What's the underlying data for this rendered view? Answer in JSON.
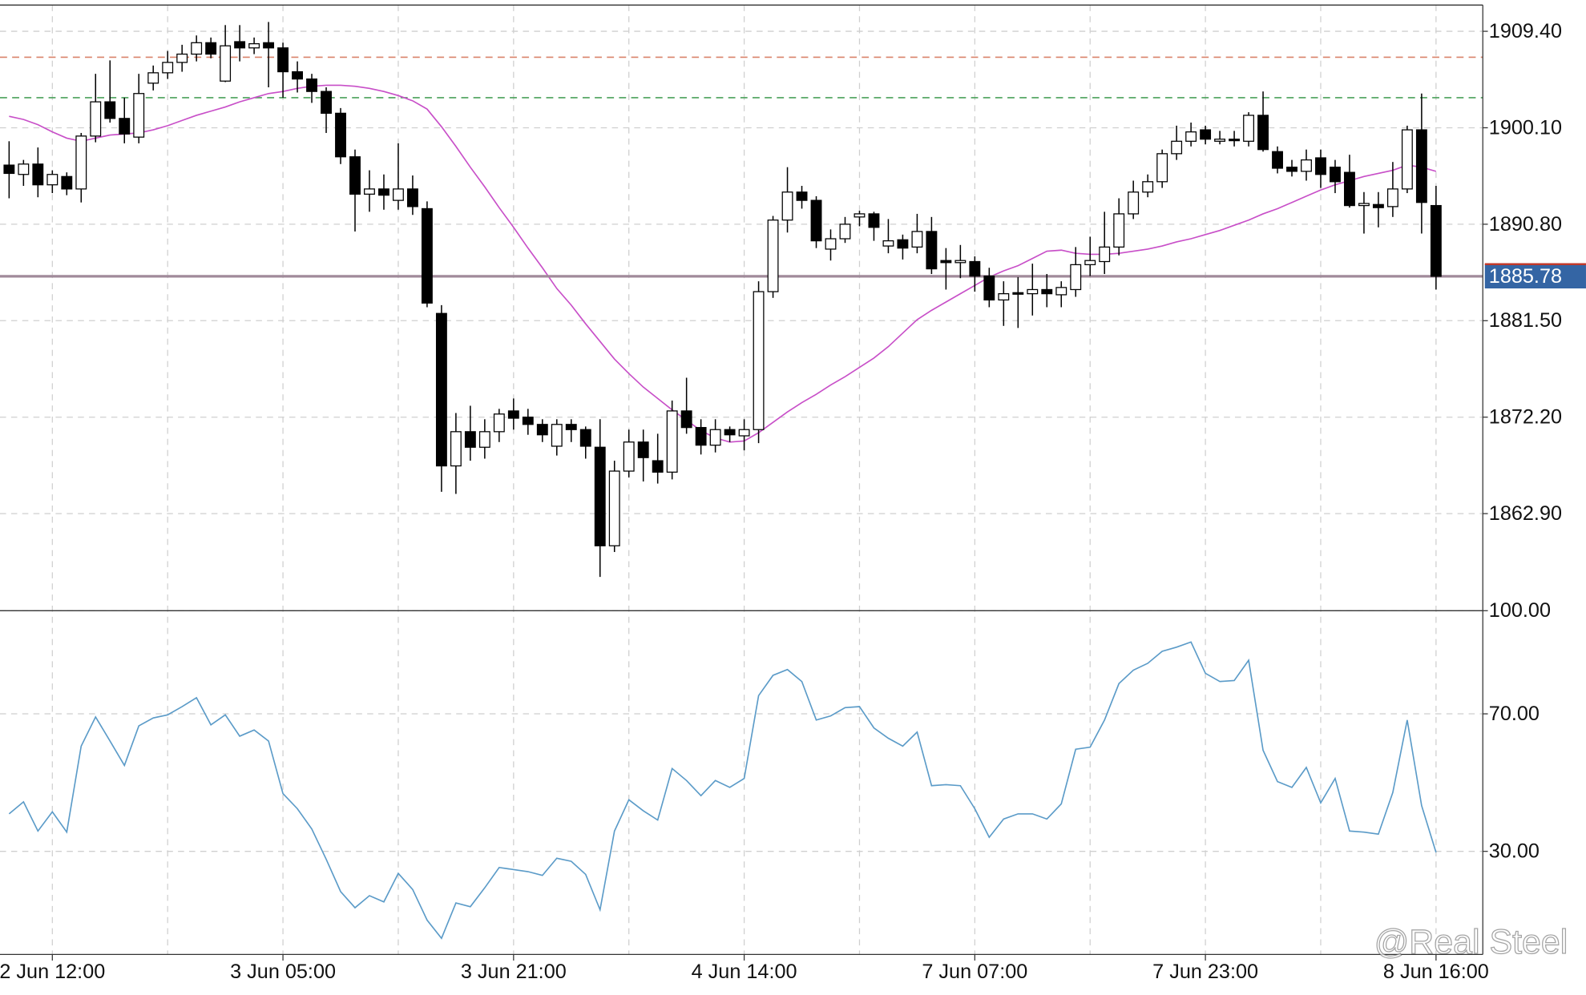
{
  "watermark": "@Real Steel",
  "chart_data": [
    {
      "type": "candlestick",
      "categories": [
        null,
        null,
        null,
        "2 Jun 12:00",
        null,
        null,
        null,
        null,
        null,
        null,
        null,
        null,
        null,
        null,
        null,
        null,
        null,
        null,
        null,
        "3 Jun 05:00",
        null,
        null,
        null,
        null,
        null,
        null,
        null,
        null,
        null,
        null,
        null,
        null,
        null,
        null,
        null,
        "3 Jun 21:00",
        null,
        null,
        null,
        null,
        null,
        null,
        null,
        null,
        null,
        null,
        null,
        null,
        null,
        null,
        null,
        "4 Jun 14:00",
        null,
        null,
        null,
        null,
        null,
        null,
        null,
        null,
        null,
        null,
        null,
        null,
        null,
        null,
        null,
        "7 Jun 07:00",
        null,
        null,
        null,
        null,
        null,
        null,
        null,
        null,
        null,
        null,
        null,
        null,
        null,
        null,
        null,
        "7 Jun 23:00",
        null,
        null,
        null,
        null,
        null,
        null,
        null,
        null,
        null,
        null,
        null,
        null,
        null,
        null,
        null,
        "8 Jun 16:00"
      ],
      "open": [
        1896.5,
        1895.6,
        1896.6,
        1894.6,
        1895.4,
        1894.2,
        1899.3,
        1902.6,
        1901.0,
        1899.2,
        1904.4,
        1905.4,
        1906.4,
        1907.2,
        1908.3,
        1904.6,
        1908.4,
        1907.8,
        1908.3,
        1907.8,
        1905.5,
        1904.8,
        1903.6,
        1901.5,
        1897.3,
        1893.7,
        1894.2,
        1893.1,
        1894.2,
        1892.3,
        1882.2,
        1867.5,
        1870.8,
        1869.3,
        1870.8,
        1872.8,
        1872.2,
        1871.5,
        1869.4,
        1871.5,
        1871.0,
        1869.3,
        1859.8,
        1867.0,
        1869.8,
        1868.0,
        1866.9,
        1872.8,
        1871.2,
        1869.5,
        1871.0,
        1870.4,
        1871.0,
        1884.3,
        1891.2,
        1893.9,
        1893.1,
        1888.4,
        1889.4,
        1891.5,
        1891.8,
        1888.7,
        1889.3,
        1888.6,
        1890.1,
        1887.3,
        1887.1,
        1887.2,
        1885.8,
        1883.5,
        1884.2,
        1884.1,
        1884.5,
        1884.0,
        1884.5,
        1886.9,
        1887.2,
        1888.6,
        1891.8,
        1893.9,
        1894.9,
        1897.6,
        1898.8,
        1899.9,
        1898.8,
        1899.0,
        1898.8,
        1901.3,
        1897.8,
        1896.3,
        1895.9,
        1897.2,
        1896.3,
        1895.8,
        1892.6,
        1892.7,
        1892.5,
        1894.2,
        1899.9,
        1892.6
      ],
      "high": [
        1898.8,
        1897.0,
        1898.2,
        1896.0,
        1895.8,
        1899.6,
        1905.3,
        1906.6,
        1903.0,
        1905.3,
        1906.1,
        1907.5,
        1908.1,
        1909.0,
        1908.8,
        1910.0,
        1910.0,
        1908.8,
        1910.3,
        1908.3,
        1906.5,
        1905.3,
        1904.0,
        1902.0,
        1898.0,
        1896.0,
        1895.6,
        1898.6,
        1895.5,
        1893.0,
        1883.0,
        1872.6,
        1873.3,
        1872.0,
        1873.0,
        1874.0,
        1873.0,
        1872.0,
        1872.0,
        1872.0,
        1871.3,
        1872.0,
        1868.0,
        1871.0,
        1871.0,
        1870.6,
        1873.8,
        1876.0,
        1872.0,
        1872.0,
        1871.3,
        1872.0,
        1885.3,
        1891.6,
        1896.3,
        1894.5,
        1893.5,
        1890.3,
        1891.5,
        1892.1,
        1892.0,
        1891.3,
        1889.8,
        1891.8,
        1891.5,
        1888.5,
        1888.8,
        1887.7,
        1886.6,
        1885.3,
        1885.7,
        1887.0,
        1886.0,
        1885.3,
        1888.6,
        1889.6,
        1892.0,
        1893.3,
        1895.0,
        1895.6,
        1898.0,
        1900.3,
        1900.6,
        1900.3,
        1899.8,
        1899.8,
        1901.6,
        1903.6,
        1898.3,
        1897.0,
        1898.0,
        1898.0,
        1897.0,
        1897.5,
        1893.9,
        1893.9,
        1896.8,
        1900.3,
        1903.4,
        1894.5
      ],
      "low": [
        1893.3,
        1894.5,
        1893.4,
        1893.8,
        1893.6,
        1892.9,
        1898.7,
        1900.6,
        1898.6,
        1898.6,
        1903.7,
        1904.8,
        1905.5,
        1906.5,
        1906.8,
        1904.5,
        1906.5,
        1907.2,
        1904.0,
        1903.0,
        1903.5,
        1902.5,
        1899.6,
        1896.6,
        1890.1,
        1892.0,
        1892.2,
        1892.2,
        1891.7,
        1882.8,
        1865.0,
        1864.8,
        1868.0,
        1868.2,
        1869.8,
        1871.0,
        1870.5,
        1869.8,
        1868.5,
        1869.8,
        1868.2,
        1856.8,
        1859.2,
        1866.4,
        1866.0,
        1865.8,
        1866.2,
        1870.6,
        1868.6,
        1868.8,
        1869.8,
        1869.0,
        1869.7,
        1883.7,
        1890.0,
        1892.3,
        1888.5,
        1887.3,
        1889.0,
        1890.6,
        1889.2,
        1888.0,
        1887.4,
        1888.0,
        1886.0,
        1884.5,
        1885.6,
        1884.3,
        1882.8,
        1881.0,
        1880.8,
        1882.0,
        1882.8,
        1882.8,
        1883.8,
        1885.8,
        1886.0,
        1887.8,
        1891.3,
        1893.4,
        1894.3,
        1897.0,
        1898.3,
        1898.5,
        1898.5,
        1898.3,
        1898.3,
        1897.8,
        1895.7,
        1895.4,
        1895.0,
        1894.3,
        1893.8,
        1892.4,
        1889.9,
        1890.5,
        1891.5,
        1893.8,
        1889.9,
        1884.5
      ],
      "close": [
        1895.7,
        1896.6,
        1894.6,
        1895.6,
        1894.2,
        1899.3,
        1902.6,
        1901.0,
        1899.5,
        1903.4,
        1905.4,
        1906.4,
        1907.2,
        1908.3,
        1907.2,
        1908.0,
        1907.8,
        1908.2,
        1907.8,
        1905.5,
        1904.8,
        1903.6,
        1901.5,
        1897.3,
        1893.7,
        1894.2,
        1893.6,
        1894.2,
        1892.5,
        1883.2,
        1867.5,
        1870.8,
        1869.3,
        1870.8,
        1872.5,
        1872.1,
        1871.5,
        1870.5,
        1871.5,
        1871.0,
        1869.4,
        1859.8,
        1867.0,
        1869.8,
        1868.3,
        1866.9,
        1872.8,
        1871.2,
        1869.5,
        1871.0,
        1870.5,
        1871.0,
        1884.3,
        1891.2,
        1893.9,
        1893.1,
        1889.2,
        1889.4,
        1890.8,
        1891.8,
        1890.5,
        1889.2,
        1888.5,
        1890.1,
        1886.5,
        1887.1,
        1887.3,
        1885.8,
        1883.5,
        1884.1,
        1884.1,
        1884.5,
        1884.1,
        1884.7,
        1886.9,
        1887.3,
        1888.6,
        1891.8,
        1893.9,
        1894.9,
        1897.6,
        1898.8,
        1899.7,
        1899.0,
        1899.0,
        1898.9,
        1901.3,
        1898.0,
        1896.2,
        1895.9,
        1897.0,
        1895.6,
        1894.9,
        1892.6,
        1892.8,
        1892.4,
        1894.2,
        1899.9,
        1892.9,
        1885.78
      ],
      "moving_average": {
        "color": "#c84fc8",
        "values": [
          1901.2,
          1900.9,
          1900.4,
          1899.7,
          1899.1,
          1898.8,
          1899.1,
          1899.4,
          1899.5,
          1899.6,
          1899.9,
          1900.3,
          1900.8,
          1901.3,
          1901.7,
          1902.1,
          1902.6,
          1903.0,
          1903.4,
          1903.6,
          1903.9,
          1904.1,
          1904.2,
          1904.2,
          1904.1,
          1903.9,
          1903.6,
          1903.2,
          1902.7,
          1901.9,
          1900.2,
          1898.3,
          1896.3,
          1894.4,
          1892.4,
          1890.5,
          1888.5,
          1886.6,
          1884.6,
          1883.0,
          1881.2,
          1879.5,
          1877.8,
          1876.4,
          1875.1,
          1874.0,
          1872.9,
          1871.9,
          1870.9,
          1870.2,
          1869.8,
          1869.9,
          1870.7,
          1871.7,
          1872.7,
          1873.6,
          1874.4,
          1875.3,
          1876.1,
          1877.0,
          1877.9,
          1879.0,
          1880.3,
          1881.6,
          1882.5,
          1883.3,
          1884.1,
          1884.9,
          1885.7,
          1886.3,
          1886.8,
          1887.5,
          1888.2,
          1888.3,
          1888.0,
          1887.9,
          1887.9,
          1888.0,
          1888.2,
          1888.4,
          1888.7,
          1889.1,
          1889.4,
          1889.8,
          1890.2,
          1890.7,
          1891.2,
          1891.8,
          1892.3,
          1892.9,
          1893.5,
          1894.1,
          1894.6,
          1895.0,
          1895.4,
          1895.7,
          1896.0,
          1896.5,
          1896.3,
          1895.9
        ]
      },
      "ylim": [
        1853.54,
        1911.93
      ],
      "yticks": [
        {
          "value": 1862.9,
          "label": "1862.90"
        },
        {
          "value": 1872.2,
          "label": "1872.20"
        },
        {
          "value": 1881.5,
          "label": "1881.50"
        },
        {
          "value": 1890.8,
          "label": "1890.80"
        },
        {
          "value": 1900.1,
          "label": "1900.10"
        },
        {
          "value": 1909.4,
          "label": "1909.40"
        }
      ],
      "hlines": [
        {
          "value": 1906.9,
          "color": "#d9826a"
        },
        {
          "value": 1903.0,
          "color": "#4aa05a"
        }
      ],
      "last_price": {
        "value": 1885.78,
        "color": "#3465a4"
      },
      "grid": true
    },
    {
      "type": "line",
      "color": "#5b9bc8",
      "values": [
        40.9,
        44.4,
        35.9,
        41.5,
        35.6,
        60.6,
        69.1,
        62.1,
        55.0,
        66.5,
        68.8,
        69.7,
        72.1,
        74.7,
        66.8,
        69.7,
        63.5,
        65.3,
        62.1,
        46.8,
        42.4,
        36.5,
        27.7,
        18.3,
        13.6,
        17.1,
        15.3,
        23.6,
        18.9,
        10.0,
        4.7,
        15.0,
        13.9,
        19.4,
        25.3,
        24.7,
        24.1,
        23.0,
        28.0,
        27.1,
        23.3,
        13.0,
        35.9,
        45.0,
        41.8,
        39.1,
        54.1,
        50.6,
        46.2,
        50.6,
        48.6,
        51.2,
        75.3,
        81.2,
        82.9,
        79.4,
        68.2,
        69.4,
        71.8,
        72.1,
        65.9,
        62.9,
        60.6,
        64.7,
        49.1,
        49.4,
        49.1,
        42.4,
        34.1,
        39.4,
        40.9,
        40.9,
        39.4,
        43.8,
        59.7,
        60.3,
        68.2,
        78.8,
        82.7,
        84.7,
        88.2,
        89.4,
        90.9,
        81.8,
        79.4,
        79.7,
        85.6,
        59.4,
        50.3,
        48.6,
        54.4,
        44.1,
        51.2,
        35.9,
        35.6,
        35.0,
        47.1,
        68.2,
        43.3,
        29.7
      ],
      "ylim": [
        0,
        100
      ],
      "yticks": [
        {
          "value": 30,
          "label": "30.00"
        },
        {
          "value": 70,
          "label": "70.00"
        },
        {
          "value": 100,
          "label": "100.00"
        }
      ],
      "grid": true
    }
  ]
}
